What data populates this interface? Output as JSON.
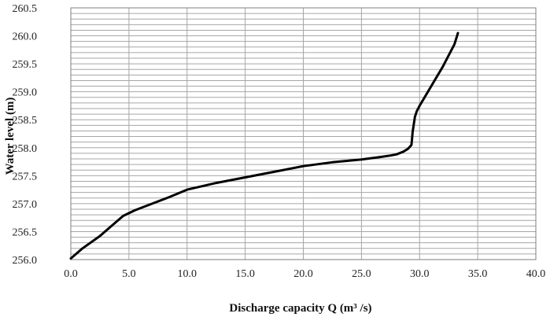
{
  "chart_data": {
    "type": "line",
    "title": "",
    "xlabel": "Discharge capacity Q (m³ /s)",
    "ylabel": "Water level (m)",
    "xlim": [
      0,
      40
    ],
    "ylim": [
      256.0,
      260.5
    ],
    "xticks": [
      "0.0",
      "5.0",
      "10.0",
      "15.0",
      "20.0",
      "25.0",
      "30.0",
      "35.0",
      "40.0"
    ],
    "yticks": [
      "256.0",
      "256.5",
      "257.0",
      "257.5",
      "258.0",
      "258.5",
      "259.0",
      "259.5",
      "260.0",
      "260.5"
    ],
    "x_major_step": 5,
    "y_minor_step": 0.1,
    "grid": true,
    "legend": "none",
    "series": [
      {
        "color": "#000000",
        "x": [
          0.0,
          1.0,
          2.5,
          3.5,
          4.5,
          5.5,
          7.0,
          8.5,
          10.0,
          12.5,
          15.0,
          17.5,
          20.0,
          22.5,
          25.0,
          26.5,
          27.5,
          28.0,
          28.6,
          29.0,
          29.3,
          29.35,
          29.4,
          29.5,
          29.6,
          29.75,
          30.0,
          31.0,
          32.0,
          33.0,
          33.3
        ],
        "y": [
          256.02,
          256.2,
          256.42,
          256.6,
          256.78,
          256.88,
          257.0,
          257.12,
          257.25,
          257.37,
          257.47,
          257.57,
          257.67,
          257.74,
          257.79,
          257.83,
          257.86,
          257.88,
          257.93,
          257.98,
          258.05,
          258.15,
          258.28,
          258.42,
          258.55,
          258.65,
          258.75,
          259.1,
          259.45,
          259.85,
          260.05
        ]
      }
    ]
  }
}
